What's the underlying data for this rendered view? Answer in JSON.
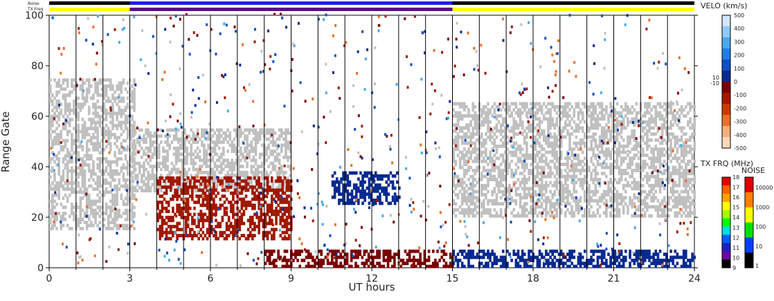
{
  "chart_data": {
    "type": "heatmap",
    "x_axis": {
      "label": "UT hours",
      "ticks": [
        "0",
        "3",
        "6",
        "9",
        "12",
        "15",
        "18",
        "21",
        "24"
      ],
      "range": [
        0,
        24
      ],
      "grid": "vertical line every 1 hour"
    },
    "y_axis": {
      "label": "Range Gate",
      "ticks": [
        "0",
        "20",
        "40",
        "60",
        "80",
        "100"
      ],
      "range": [
        0,
        100
      ]
    },
    "top_bars": {
      "noise_label": "Noise",
      "txfreq_label": "TX Freq",
      "txfreq_segments": [
        {
          "from": 0,
          "to": 3,
          "color": "#ffff00"
        },
        {
          "from": 3,
          "to": 15,
          "color": "#5a0a8c"
        },
        {
          "from": 15,
          "to": 24,
          "color": "#ffff00"
        }
      ],
      "noise_segments": [
        {
          "from": 0,
          "to": 3,
          "color": "#000000"
        },
        {
          "from": 3,
          "to": 15,
          "color": "#2020e8"
        },
        {
          "from": 15,
          "to": 24,
          "color": "#000000"
        }
      ]
    },
    "velocity_scale": {
      "title": "VELO (km/s)",
      "ticks": [
        "500",
        "400",
        "300",
        "200",
        "100",
        "0",
        "-100",
        "-200",
        "-300",
        "-400",
        "-500"
      ],
      "inner_ticks": [
        "10",
        "-10"
      ],
      "colors": [
        "#cfe6ff",
        "#8fc9f5",
        "#4aa8ec",
        "#1f7fe0",
        "#0f4fc2",
        "#082a8f",
        "#7a0000",
        "#a01800",
        "#c83c00",
        "#e8702a",
        "#f5b07a",
        "#fcd9b8"
      ]
    },
    "txfreq_scale": {
      "title": "TX FRQ (MHz)",
      "ticks": [
        "18",
        "17",
        "16",
        "15",
        "14",
        "13",
        "12",
        "11",
        "10",
        "9"
      ],
      "colors": [
        "#e00000",
        "#ff6000",
        "#ffa000",
        "#ffff00",
        "#a0ff00",
        "#00ff00",
        "#00e0e0",
        "#0060ff",
        "#2020c0",
        "#6a0aa0",
        "#000000"
      ]
    },
    "noise_scale": {
      "title": "NOISE",
      "ticks": [
        "10000",
        "1000",
        "100",
        "10",
        "1"
      ],
      "colors": [
        "#e00000",
        "#ff8000",
        "#ffff00",
        "#00e000",
        "#0040ff",
        "#000000"
      ]
    },
    "regions": [
      {
        "name": "ground-scatter-early",
        "x": [
          0,
          3.2
        ],
        "y": [
          15,
          75
        ],
        "color": "#c0c0c0"
      },
      {
        "name": "ground-scatter-band",
        "x": [
          3,
          9
        ],
        "y": [
          30,
          55
        ],
        "color": "#c0c0c0"
      },
      {
        "name": "negative-velocity-patch",
        "x": [
          4,
          9
        ],
        "y": [
          11,
          35
        ],
        "color": "#a01800"
      },
      {
        "name": "positive-velocity-patch",
        "x": [
          10.5,
          13
        ],
        "y": [
          25,
          38
        ],
        "color": "#082a8f"
      },
      {
        "name": "low-gate-negative",
        "x": [
          8,
          15
        ],
        "y": [
          0,
          7
        ],
        "color": "#7a0000"
      },
      {
        "name": "low-gate-positive",
        "x": [
          15,
          24
        ],
        "y": [
          0,
          7
        ],
        "color": "#082a8f"
      },
      {
        "name": "ground-scatter-late",
        "x": [
          15,
          24
        ],
        "y": [
          20,
          65
        ],
        "color": "#c0c0c0"
      }
    ]
  }
}
